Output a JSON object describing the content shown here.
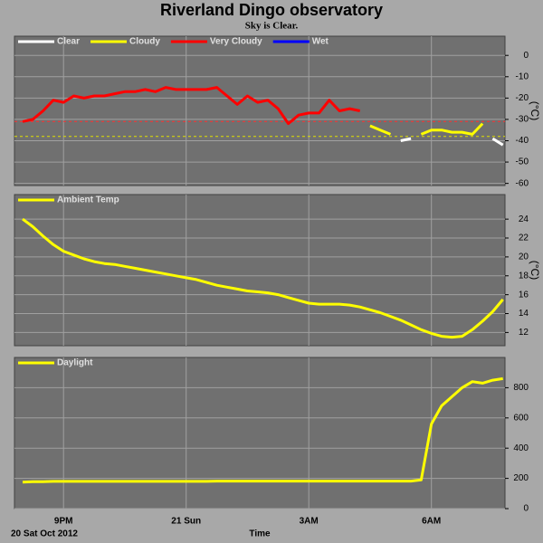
{
  "title": "Riverland Dingo observatory",
  "subtitle": "Sky is Clear.",
  "chart_data": [
    {
      "type": "line",
      "ylabel": "(°C)",
      "legend": "top-left",
      "x": [
        20,
        20.25,
        20.5,
        20.75,
        21,
        21.25,
        21.5,
        21.75,
        22,
        22.25,
        22.5,
        22.75,
        23,
        23.25,
        23.5,
        23.75,
        24,
        24.25,
        24.5,
        24.75,
        25,
        25.25,
        25.5,
        25.75,
        26,
        26.25,
        26.5,
        26.75,
        27,
        27.25,
        27.5,
        27.75,
        28,
        28.25,
        28.5,
        28.75,
        29,
        29.25,
        29.5,
        29.75,
        30,
        30.25,
        30.5,
        30.75,
        31,
        31.25,
        31.5,
        31.75
      ],
      "series": [
        {
          "name": "Clear",
          "color": "#ffffff",
          "values": [
            null,
            null,
            null,
            null,
            null,
            null,
            null,
            null,
            null,
            null,
            null,
            null,
            null,
            null,
            null,
            null,
            null,
            null,
            null,
            null,
            null,
            null,
            null,
            null,
            null,
            null,
            null,
            null,
            null,
            null,
            null,
            null,
            null,
            null,
            null,
            null,
            null,
            -40,
            -39,
            null,
            null,
            null,
            null,
            null,
            null,
            null,
            -39,
            -42
          ]
        },
        {
          "name": "Cloudy",
          "color": "#ffff00",
          "values": [
            null,
            null,
            null,
            null,
            null,
            null,
            null,
            null,
            null,
            null,
            null,
            null,
            null,
            null,
            null,
            null,
            null,
            null,
            null,
            null,
            null,
            null,
            null,
            null,
            null,
            null,
            null,
            null,
            null,
            null,
            null,
            null,
            null,
            null,
            -33,
            -35,
            -37,
            null,
            null,
            -37,
            -35,
            -35,
            -36,
            -36,
            -37,
            -32,
            null,
            null
          ]
        },
        {
          "name": "Very Cloudy",
          "color": "#ff0000",
          "values": [
            -31,
            -30,
            -26,
            -21,
            -22,
            -19,
            -20,
            -19,
            -19,
            -18,
            -17,
            -17,
            -16,
            -17,
            -15,
            -16,
            -16,
            -16,
            -16,
            -15,
            -19,
            -23,
            -19,
            -22,
            -21,
            -25,
            -32,
            -28,
            -27,
            -27,
            -21,
            -26,
            -25,
            -26,
            null,
            null,
            null,
            null,
            null,
            null,
            null,
            null,
            null,
            null,
            null,
            null,
            null,
            null
          ]
        },
        {
          "name": "Wet",
          "color": "#0000ff",
          "values": [
            null,
            null,
            null,
            null,
            null,
            null,
            null,
            null,
            null,
            null,
            null,
            null,
            null,
            null,
            null,
            null,
            null,
            null,
            null,
            null,
            null,
            null,
            null,
            null,
            null,
            null,
            null,
            null,
            null,
            null,
            null,
            null,
            null,
            null,
            null,
            null,
            null,
            null,
            null,
            null,
            null,
            null,
            null,
            null,
            null,
            null,
            null,
            null
          ]
        }
      ],
      "reference_lines": [
        {
          "value": -31,
          "color": "#ff3030"
        },
        {
          "value": -38,
          "color": "#e0e000"
        }
      ],
      "xlim": [
        19.8,
        31.8
      ],
      "xticks": [
        21,
        24,
        27,
        30
      ],
      "ylim": [
        -61,
        9
      ],
      "yticks": [
        0,
        -10,
        -20,
        -30,
        -40,
        -50,
        -60
      ],
      "grid": true
    },
    {
      "type": "line",
      "ylabel": "(°C)",
      "legend": "top-left",
      "x": [
        20,
        20.25,
        20.5,
        20.75,
        21,
        21.25,
        21.5,
        21.75,
        22,
        22.25,
        22.5,
        22.75,
        23,
        23.25,
        23.5,
        23.75,
        24,
        24.25,
        24.5,
        24.75,
        25,
        25.25,
        25.5,
        25.75,
        26,
        26.25,
        26.5,
        26.75,
        27,
        27.25,
        27.5,
        27.75,
        28,
        28.25,
        28.5,
        28.75,
        29,
        29.25,
        29.5,
        29.75,
        30,
        30.25,
        30.5,
        30.75,
        31,
        31.25,
        31.5,
        31.75
      ],
      "series": [
        {
          "name": "Ambient Temp",
          "color": "#ffff00",
          "values": [
            24.0,
            23.2,
            22.2,
            21.3,
            20.6,
            20.2,
            19.8,
            19.5,
            19.3,
            19.2,
            19.0,
            18.8,
            18.6,
            18.4,
            18.2,
            18.0,
            17.8,
            17.6,
            17.3,
            17.0,
            16.8,
            16.6,
            16.4,
            16.3,
            16.2,
            16.0,
            15.7,
            15.4,
            15.1,
            15.0,
            15.0,
            15.0,
            14.9,
            14.7,
            14.4,
            14.1,
            13.7,
            13.3,
            12.8,
            12.3,
            11.9,
            11.6,
            11.5,
            11.6,
            12.3,
            13.2,
            14.2,
            15.5
          ]
        }
      ],
      "xlim": [
        19.8,
        31.8
      ],
      "xticks": [
        21,
        24,
        27,
        30
      ],
      "ylim": [
        10.6,
        26.6
      ],
      "yticks": [
        12,
        14,
        16,
        18,
        20,
        22,
        24
      ],
      "grid": true
    },
    {
      "type": "line",
      "legend": "top-left",
      "xlabel": "Time",
      "x_start_label": "20 Sat Oct 2012",
      "x": [
        20,
        20.25,
        20.5,
        20.75,
        21,
        21.25,
        21.5,
        21.75,
        22,
        22.25,
        22.5,
        22.75,
        23,
        23.25,
        23.5,
        23.75,
        24,
        24.25,
        24.5,
        24.75,
        25,
        25.25,
        25.5,
        25.75,
        26,
        26.25,
        26.5,
        26.75,
        27,
        27.25,
        27.5,
        27.75,
        28,
        28.25,
        28.5,
        28.75,
        29,
        29.25,
        29.5,
        29.75,
        30,
        30.25,
        30.5,
        30.75,
        31,
        31.25,
        31.5,
        31.75
      ],
      "series": [
        {
          "name": "Daylight",
          "color": "#ffff00",
          "values": [
            175,
            178,
            178,
            180,
            180,
            180,
            180,
            180,
            180,
            180,
            180,
            180,
            180,
            180,
            180,
            180,
            180,
            180,
            180,
            182,
            182,
            182,
            182,
            182,
            182,
            182,
            182,
            182,
            182,
            182,
            182,
            182,
            182,
            182,
            182,
            182,
            182,
            182,
            182,
            190,
            560,
            680,
            740,
            800,
            840,
            830,
            850,
            860
          ]
        }
      ],
      "xlim": [
        19.8,
        31.8
      ],
      "xticks": [
        {
          "value": 21,
          "label": "9PM"
        },
        {
          "value": 24,
          "label": "21 Sun"
        },
        {
          "value": 27,
          "label": "3AM"
        },
        {
          "value": 30,
          "label": "6AM"
        }
      ],
      "ylim": [
        0,
        1000
      ],
      "yticks": [
        0,
        200,
        400,
        600,
        800
      ],
      "grid": true
    }
  ]
}
